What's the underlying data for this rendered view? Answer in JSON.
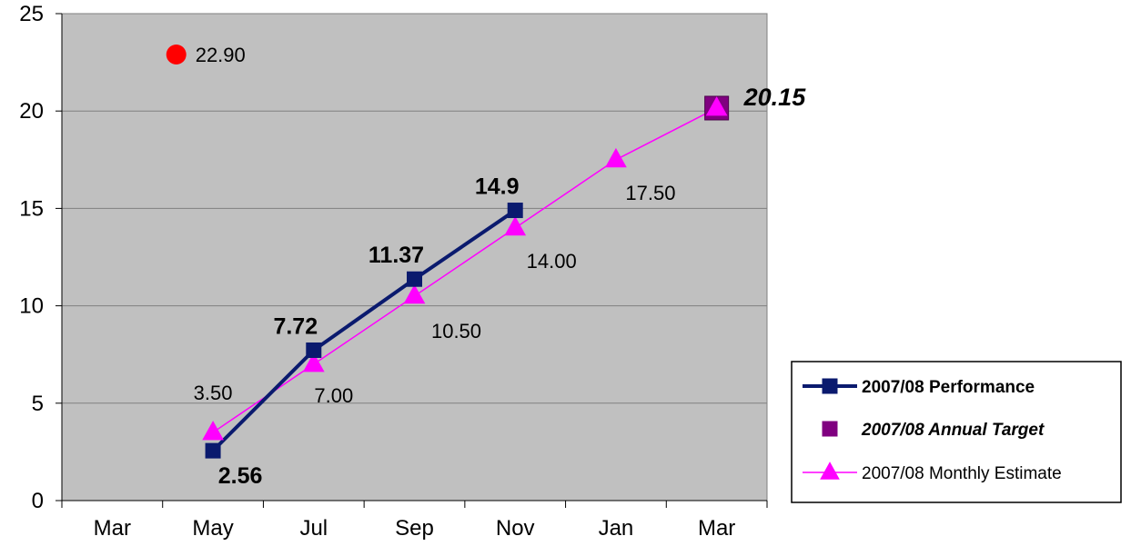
{
  "chart_data": {
    "type": "line",
    "categories": [
      "Mar",
      "May",
      "Jul",
      "Sep",
      "Nov",
      "Jan",
      "Mar"
    ],
    "ylim": [
      0,
      25
    ],
    "y_ticks": [
      "0",
      "5",
      "10",
      "15",
      "20",
      "25"
    ],
    "grid": true,
    "legend_position": "bottom-right",
    "series": [
      {
        "name": "2007/08 Performance",
        "color": "#0a1a6e",
        "marker": "square",
        "points": [
          {
            "x": 1,
            "y": 2.56,
            "label": "2.56"
          },
          {
            "x": 2,
            "y": 7.72,
            "label": "7.72"
          },
          {
            "x": 3,
            "y": 11.37,
            "label": "11.37"
          },
          {
            "x": 4,
            "y": 14.9,
            "label": "14.9"
          }
        ]
      },
      {
        "name": "2007/08 Annual Target",
        "color": "#800080",
        "marker": "square",
        "points": [
          {
            "x": 6,
            "y": 20.15,
            "label": "20.15"
          }
        ]
      },
      {
        "name": "2007/08 Monthly Estimate",
        "color": "#ff00ff",
        "marker": "triangle",
        "points": [
          {
            "x": 1,
            "y": 3.5,
            "label": "3.50"
          },
          {
            "x": 2,
            "y": 7.0,
            "label": "7.00"
          },
          {
            "x": 3,
            "y": 10.5,
            "label": "10.50"
          },
          {
            "x": 4,
            "y": 14.0,
            "label": "14.00"
          },
          {
            "x": 5,
            "y": 17.5,
            "label": "17.50"
          },
          {
            "x": 6,
            "y": 20.15,
            "label": ""
          }
        ]
      }
    ],
    "extra_point": {
      "x": 0.5,
      "y": 22.9,
      "label": "22.90",
      "color": "#ff0000",
      "marker": "circle"
    }
  }
}
